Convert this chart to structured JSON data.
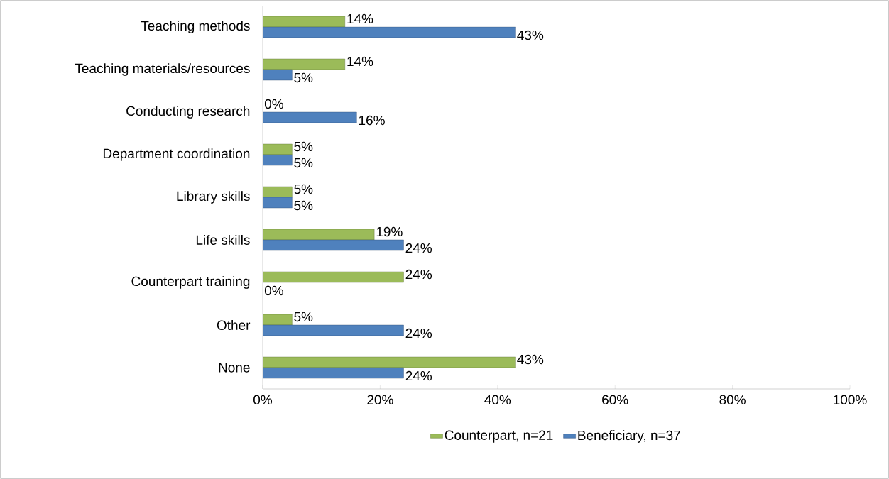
{
  "chart_data": {
    "type": "bar",
    "orientation": "horizontal",
    "categories": [
      "Teaching methods",
      "Teaching materials/resources",
      "Conducting research",
      "Department coordination",
      "Library skills",
      "Life skills",
      "Counterpart training",
      "Other",
      "None"
    ],
    "series": [
      {
        "name": "Counterpart, n=21",
        "color": "#9bbb59",
        "values": [
          14,
          14,
          0,
          5,
          5,
          19,
          24,
          5,
          43
        ],
        "value_labels": [
          "14%",
          "14%",
          "0%",
          "5%",
          "5%",
          "19%",
          "24%",
          "5%",
          "43%"
        ]
      },
      {
        "name": "Beneficiary, n=37",
        "color": "#4f81bd",
        "values": [
          43,
          5,
          16,
          5,
          5,
          24,
          0,
          24,
          24
        ],
        "value_labels": [
          "43%",
          "5%",
          "16%",
          "5%",
          "5%",
          "24%",
          "0%",
          "24%",
          "24%"
        ]
      }
    ],
    "xlim": [
      0,
      100
    ],
    "xticks": [
      {
        "value": 0,
        "label": "0%"
      },
      {
        "value": 20,
        "label": "20%"
      },
      {
        "value": 40,
        "label": "40%"
      },
      {
        "value": 60,
        "label": "60%"
      },
      {
        "value": 80,
        "label": "80%"
      },
      {
        "value": 100,
        "label": "100%"
      }
    ],
    "legend": "bottom"
  }
}
